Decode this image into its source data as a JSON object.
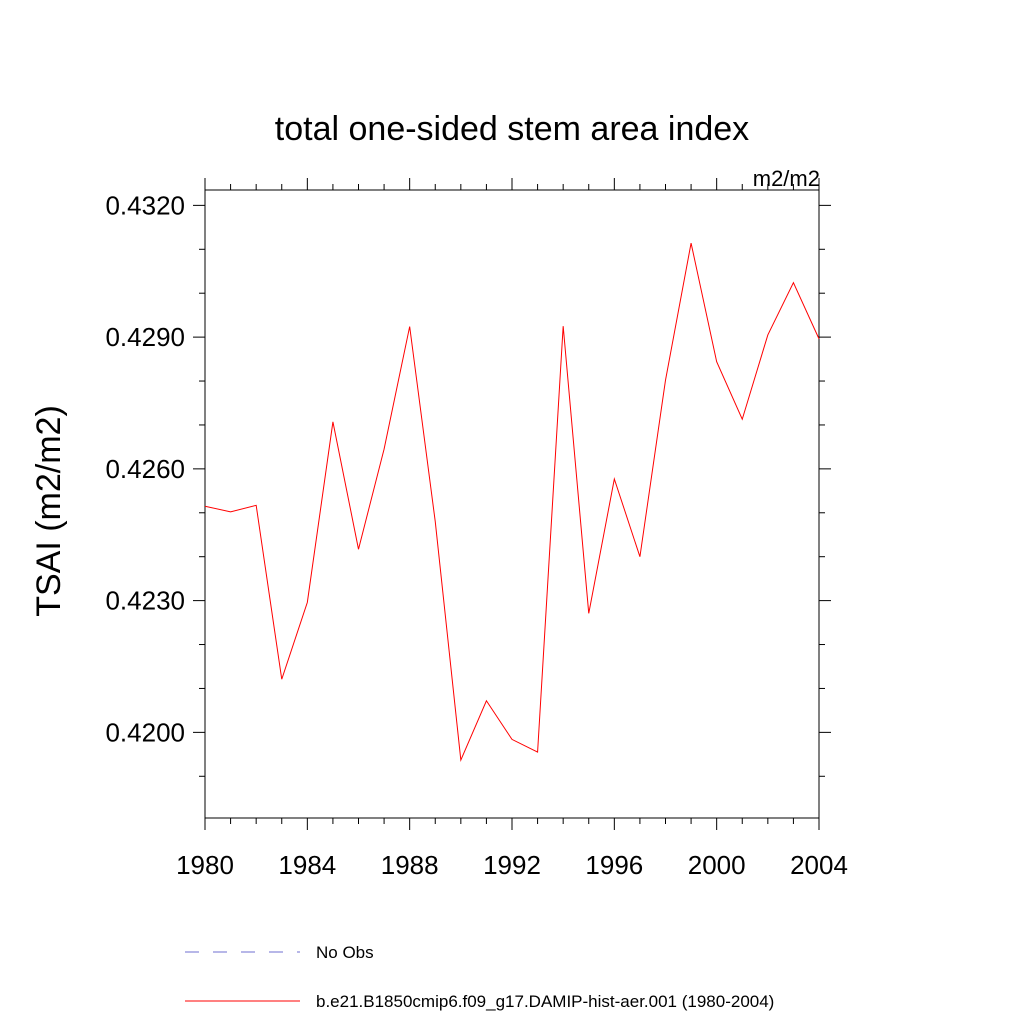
{
  "chart_data": {
    "type": "line",
    "title": "total one-sided stem area index",
    "units_label": "m2/m2",
    "ylabel": "TSAI  (m2/m2)",
    "xlabel": "",
    "xlim": [
      1980,
      2004
    ],
    "ylim": [
      0.41805,
      0.43235
    ],
    "x_ticks": [
      1980,
      1984,
      1988,
      1992,
      1996,
      2000,
      2004
    ],
    "x_tick_labels": [
      "1980",
      "1984",
      "1988",
      "1992",
      "1996",
      "2000",
      "2004"
    ],
    "y_ticks": [
      0.42,
      0.423,
      0.426,
      0.429,
      0.432
    ],
    "y_tick_labels": [
      "0.4200",
      "0.4230",
      "0.4260",
      "0.4290",
      "0.4320"
    ],
    "y_minor_step": 0.001,
    "x_minor_step": 1,
    "grid": false,
    "legend_placement": "bottom",
    "series": [
      {
        "name": "No Obs",
        "color": "#6f6fd0",
        "dash": "dashed",
        "x": [],
        "values": []
      },
      {
        "name": "b.e21.B1850cmip6.f09_g17.DAMIP-hist-aer.001 (1980-2004)",
        "color": "#ff0000",
        "dash": "solid",
        "x": [
          1980,
          1981,
          1982,
          1983,
          1984,
          1985,
          1986,
          1987,
          1988,
          1989,
          1990,
          1991,
          1992,
          1993,
          1994,
          1995,
          1996,
          1997,
          1998,
          1999,
          2000,
          2001,
          2002,
          2003,
          2004
        ],
        "values": [
          0.42515,
          0.42502,
          0.42517,
          0.42121,
          0.42296,
          0.42707,
          0.42417,
          0.42645,
          0.42924,
          0.4248,
          0.41937,
          0.42072,
          0.41984,
          0.41955,
          0.42925,
          0.42271,
          0.42577,
          0.424,
          0.42802,
          0.43114,
          0.42844,
          0.42713,
          0.42905,
          0.43024,
          0.42896
        ]
      }
    ]
  }
}
